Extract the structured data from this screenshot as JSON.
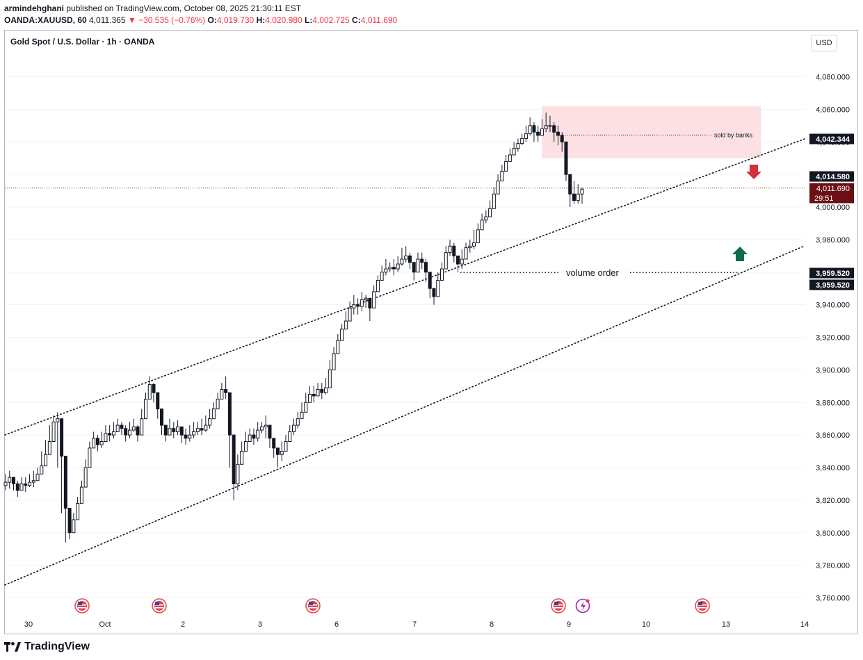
{
  "header": {
    "author": "armindehghani",
    "published_text": "published on TradingView.com, October 08, 2025 21:30:11 EST",
    "symbol": "OANDA:XAUUSD, 60",
    "last": "4,011.365",
    "change": "▼ −30.535 (−0.76%)",
    "open_label": "O:",
    "open": "4,019.730",
    "high_label": "H:",
    "high": "4,020.980",
    "low_label": "L:",
    "low": "4,002.725",
    "close_label": "C:",
    "close": "4,011.690"
  },
  "chart_title": "Gold Spot / U.S. Dollar · 1h · OANDA",
  "currency_button": "USD",
  "brand": "TradingView",
  "colors": {
    "up": "#131722",
    "down": "#131722",
    "sell_zone": "#fde0e3",
    "down_arrow": "#d32f3c",
    "up_arrow": "#0b6b4e",
    "current_price": "#6b0f14",
    "grid": "#f0f3fa"
  },
  "chart_data": {
    "type": "candlestick",
    "title": "Gold Spot / U.S. Dollar · 1h · OANDA",
    "ylim": [
      3750,
      4100
    ],
    "y_ticks": [
      "4,080.000",
      "4,060.000",
      "4,040.000",
      "4,020.000",
      "4,000.000",
      "3,980.000",
      "3,960.000",
      "3,940.000",
      "3,920.000",
      "3,900.000",
      "3,880.000",
      "3,860.000",
      "3,840.000",
      "3,820.000",
      "3,800.000",
      "3,780.000",
      "3,760.000"
    ],
    "x_ticks": [
      "30",
      "Oct",
      "2",
      "3",
      "6",
      "7",
      "8",
      "9",
      "10",
      "13",
      "14"
    ],
    "price_labels": [
      {
        "value": "4,042.344",
        "style": "dark"
      },
      {
        "value": "4,014.580",
        "style": "dark"
      },
      {
        "value": "4,011.690",
        "style": "current"
      },
      {
        "value": "29:51",
        "style": "current"
      },
      {
        "value": "3,959.520",
        "style": "dark"
      },
      {
        "value": "3,959.520",
        "style": "dark"
      }
    ],
    "annotations": [
      {
        "text": "sold by banks"
      },
      {
        "text": "volume order"
      }
    ],
    "event_markers": [
      "us-flag",
      "us-flag",
      "us-flag",
      "us-flag",
      "earnings-flash",
      "us-flag"
    ],
    "series": [
      {
        "name": "close",
        "values": [
          3831,
          3834,
          3830,
          3826,
          3830,
          3829,
          3831,
          3832,
          3836,
          3841,
          3848,
          3856,
          3868,
          3870,
          3847,
          3815,
          3800,
          3808,
          3818,
          3828,
          3840,
          3852,
          3858,
          3854,
          3856,
          3861,
          3860,
          3862,
          3866,
          3864,
          3860,
          3863,
          3865,
          3860,
          3870,
          3882,
          3891,
          3886,
          3876,
          3866,
          3860,
          3864,
          3862,
          3865,
          3860,
          3858,
          3860,
          3862,
          3864,
          3863,
          3866,
          3870,
          3876,
          3882,
          3888,
          3886,
          3860,
          3830,
          3842,
          3850,
          3856,
          3860,
          3858,
          3863,
          3865,
          3866,
          3858,
          3852,
          3848,
          3850,
          3856,
          3862,
          3866,
          3870,
          3874,
          3880,
          3885,
          3884,
          3888,
          3886,
          3889,
          3900,
          3910,
          3918,
          3925,
          3930,
          3938,
          3940,
          3939,
          3943,
          3944,
          3938,
          3948,
          3955,
          3960,
          3962,
          3963,
          3962,
          3965,
          3968,
          3970,
          3966,
          3960,
          3968,
          3966,
          3960,
          3950,
          3945,
          3955,
          3962,
          3972,
          3976,
          3970,
          3965,
          3968,
          3975,
          3976,
          3978,
          3986,
          3992,
          3994,
          3999,
          4008,
          4016,
          4022,
          4028,
          4032,
          4036,
          4039,
          4042,
          4045,
          4050,
          4046,
          4044,
          4048,
          4050,
          4050,
          4046,
          4044,
          4040,
          4020,
          4008,
          4004,
          4008,
          4011
        ]
      },
      {
        "name": "high",
        "values": [
          3836,
          3838,
          3834,
          3832,
          3834,
          3834,
          3836,
          3838,
          3840,
          3850,
          3857,
          3866,
          3872,
          3874,
          3850,
          3818,
          3805,
          3812,
          3822,
          3832,
          3845,
          3856,
          3862,
          3860,
          3862,
          3866,
          3866,
          3868,
          3870,
          3868,
          3866,
          3868,
          3870,
          3866,
          3876,
          3886,
          3896,
          3892,
          3880,
          3870,
          3866,
          3870,
          3868,
          3869,
          3864,
          3864,
          3866,
          3868,
          3868,
          3870,
          3872,
          3876,
          3880,
          3886,
          3892,
          3896,
          3880,
          3842,
          3848,
          3856,
          3862,
          3864,
          3864,
          3868,
          3868,
          3872,
          3862,
          3858,
          3852,
          3856,
          3860,
          3866,
          3870,
          3874,
          3880,
          3886,
          3890,
          3890,
          3892,
          3892,
          3895,
          3906,
          3914,
          3922,
          3928,
          3936,
          3942,
          3946,
          3944,
          3948,
          3946,
          3944,
          3952,
          3958,
          3964,
          3968,
          3966,
          3968,
          3970,
          3975,
          3976,
          3972,
          3966,
          3972,
          3972,
          3968,
          3956,
          3950,
          3960,
          3966,
          3976,
          3980,
          3978,
          3970,
          3974,
          3978,
          3980,
          3986,
          3990,
          3996,
          3998,
          4004,
          4012,
          4020,
          4026,
          4032,
          4036,
          4040,
          4042,
          4045,
          4050,
          4055,
          4052,
          4050,
          4054,
          4058,
          4056,
          4052,
          4050,
          4046,
          4036,
          4016,
          4016,
          4014,
          4012
        ]
      },
      {
        "name": "low",
        "values": [
          3826,
          3827,
          3826,
          3822,
          3826,
          3825,
          3828,
          3828,
          3832,
          3836,
          3844,
          3852,
          3856,
          3840,
          3812,
          3794,
          3796,
          3804,
          3814,
          3824,
          3836,
          3848,
          3852,
          3850,
          3852,
          3856,
          3856,
          3858,
          3862,
          3860,
          3856,
          3858,
          3862,
          3856,
          3862,
          3876,
          3884,
          3880,
          3870,
          3860,
          3856,
          3860,
          3858,
          3860,
          3855,
          3854,
          3856,
          3858,
          3860,
          3860,
          3862,
          3864,
          3872,
          3878,
          3884,
          3882,
          3840,
          3820,
          3826,
          3844,
          3852,
          3856,
          3854,
          3856,
          3861,
          3858,
          3852,
          3846,
          3840,
          3844,
          3850,
          3858,
          3860,
          3864,
          3870,
          3876,
          3880,
          3880,
          3884,
          3882,
          3885,
          3895,
          3904,
          3914,
          3920,
          3926,
          3932,
          3934,
          3934,
          3936,
          3938,
          3930,
          3944,
          3950,
          3955,
          3958,
          3960,
          3958,
          3960,
          3964,
          3966,
          3962,
          3955,
          3960,
          3962,
          3954,
          3944,
          3940,
          3946,
          3956,
          3966,
          3970,
          3966,
          3960,
          3962,
          3970,
          3972,
          3974,
          3980,
          3986,
          3990,
          3994,
          4004,
          4010,
          4016,
          4024,
          4028,
          4032,
          4034,
          4038,
          4040,
          4044,
          4040,
          4040,
          4044,
          4046,
          4046,
          4040,
          4038,
          4034,
          4016,
          4000,
          4002,
          4002,
          4002
        ]
      }
    ],
    "channel_lines": [
      {
        "name": "upper",
        "from": 3860,
        "to": 4042.344
      },
      {
        "name": "lower",
        "from": 3767,
        "to": 3976
      }
    ],
    "levels": [
      {
        "name": "current",
        "value": 4011.69
      },
      {
        "name": "volume-order",
        "value": 3959.52
      },
      {
        "name": "sold-by-banks",
        "value": 4044
      }
    ],
    "zones": [
      {
        "name": "sell-zone",
        "from": 4030,
        "to": 4062
      }
    ]
  }
}
